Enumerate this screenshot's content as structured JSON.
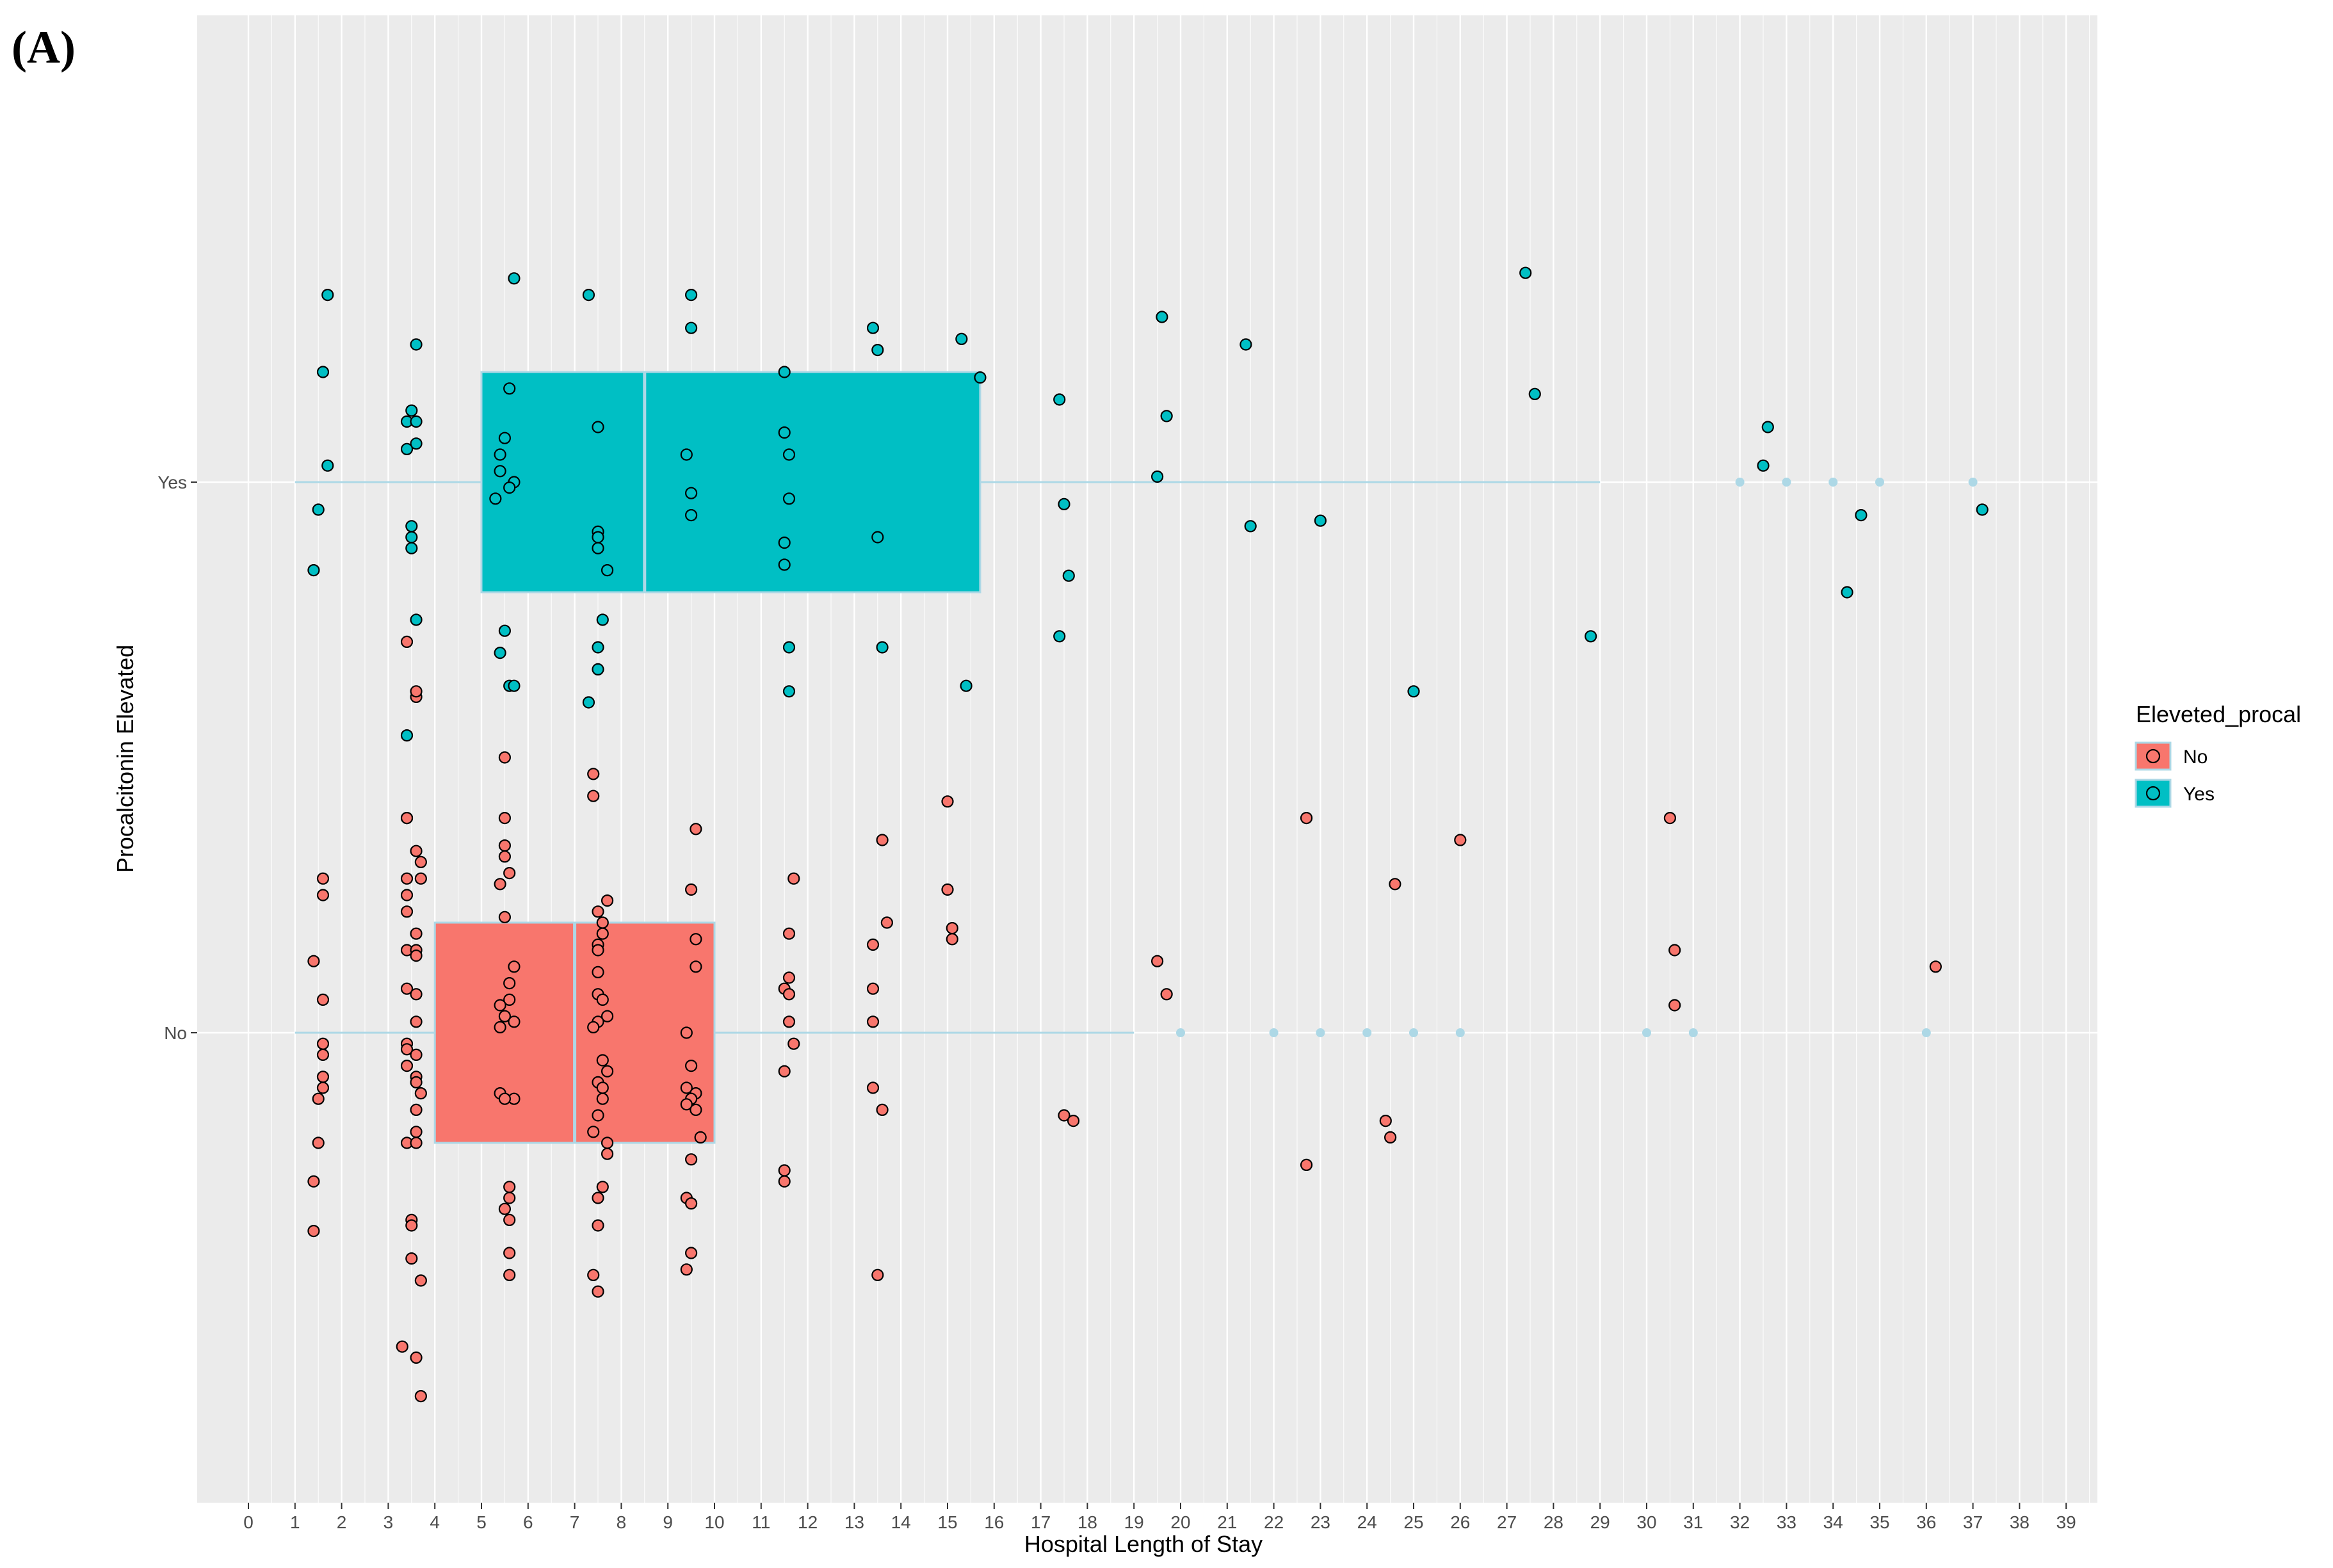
{
  "panel_label": "(A)",
  "chart_data": {
    "type": "boxplot",
    "xlabel": "Hospital Length of Stay",
    "ylabel": "Procalcitonin Elevated",
    "xlim": [
      -0.5,
      39.8
    ],
    "x_ticks": [
      0,
      1,
      2,
      3,
      4,
      5,
      6,
      7,
      8,
      9,
      10,
      11,
      12,
      13,
      14,
      15,
      16,
      17,
      18,
      19,
      20,
      21,
      22,
      23,
      24,
      25,
      26,
      27,
      28,
      29,
      30,
      31,
      32,
      33,
      34,
      35,
      36,
      37,
      38,
      39
    ],
    "categories": [
      "No",
      "Yes"
    ],
    "grid": true,
    "legend": {
      "title": "Eleveted_procal",
      "position": "right",
      "entries": [
        "No",
        "Yes"
      ]
    },
    "colors": {
      "No": "#f8766d",
      "Yes": "#00bfc4",
      "whisker": "#add8e6",
      "panel": "#ebebeb",
      "grid": "#ffffff",
      "point_edge": "#000000"
    },
    "boxes": [
      {
        "group": "No",
        "q1": 4,
        "median": 7,
        "q3": 10,
        "whisker_low": 1,
        "whisker_high": 19,
        "outliers": [
          20,
          22,
          23,
          24,
          25,
          26,
          30,
          31,
          36
        ]
      },
      {
        "group": "Yes",
        "q1": 5,
        "median": 8.5,
        "q3": 15.7,
        "whisker_low": 1,
        "whisker_high": 29,
        "outliers": [
          32,
          33,
          34,
          35,
          37
        ]
      }
    ],
    "series": [
      {
        "name": "No",
        "points": [
          [
            1.6,
            0.28
          ],
          [
            1.6,
            0.25
          ],
          [
            1.4,
            0.13
          ],
          [
            1.6,
            0.06
          ],
          [
            1.6,
            -0.02
          ],
          [
            1.6,
            -0.04
          ],
          [
            1.6,
            -0.08
          ],
          [
            1.6,
            -0.1
          ],
          [
            1.5,
            -0.12
          ],
          [
            1.5,
            -0.2
          ],
          [
            1.4,
            -0.27
          ],
          [
            1.4,
            -0.36
          ],
          [
            3.4,
            0.71
          ],
          [
            3.6,
            0.61
          ],
          [
            3.6,
            0.62
          ],
          [
            3.4,
            0.39
          ],
          [
            3.4,
            0.39
          ],
          [
            3.6,
            0.33
          ],
          [
            3.7,
            0.31
          ],
          [
            3.4,
            0.28
          ],
          [
            3.7,
            0.28
          ],
          [
            3.4,
            0.25
          ],
          [
            3.4,
            0.22
          ],
          [
            3.6,
            0.18
          ],
          [
            3.4,
            0.15
          ],
          [
            3.6,
            0.15
          ],
          [
            3.6,
            0.14
          ],
          [
            3.4,
            0.08
          ],
          [
            3.6,
            0.07
          ],
          [
            3.6,
            0.02
          ],
          [
            3.4,
            -0.02
          ],
          [
            3.4,
            -0.03
          ],
          [
            3.6,
            -0.04
          ],
          [
            3.4,
            -0.06
          ],
          [
            3.6,
            -0.08
          ],
          [
            3.6,
            -0.09
          ],
          [
            3.7,
            -0.11
          ],
          [
            3.6,
            -0.14
          ],
          [
            3.6,
            -0.18
          ],
          [
            3.4,
            -0.2
          ],
          [
            3.6,
            -0.2
          ],
          [
            3.5,
            -0.34
          ],
          [
            3.5,
            -0.35
          ],
          [
            3.5,
            -0.41
          ],
          [
            3.7,
            -0.45
          ],
          [
            3.3,
            -0.57
          ],
          [
            3.6,
            -0.59
          ],
          [
            3.7,
            -0.66
          ],
          [
            5.5,
            0.5
          ],
          [
            5.5,
            0.39
          ],
          [
            5.5,
            0.34
          ],
          [
            5.5,
            0.32
          ],
          [
            5.6,
            0.29
          ],
          [
            5.4,
            0.27
          ],
          [
            5.5,
            0.21
          ],
          [
            5.7,
            0.12
          ],
          [
            5.6,
            0.09
          ],
          [
            5.6,
            0.06
          ],
          [
            5.4,
            0.05
          ],
          [
            5.5,
            0.03
          ],
          [
            5.7,
            0.02
          ],
          [
            5.4,
            0.01
          ],
          [
            5.4,
            -0.11
          ],
          [
            5.7,
            -0.12
          ],
          [
            5.5,
            -0.12
          ],
          [
            5.6,
            -0.28
          ],
          [
            5.6,
            -0.3
          ],
          [
            5.5,
            -0.32
          ],
          [
            5.6,
            -0.34
          ],
          [
            5.6,
            -0.4
          ],
          [
            5.6,
            -0.44
          ],
          [
            7.4,
            0.47
          ],
          [
            7.4,
            0.43
          ],
          [
            7.7,
            0.24
          ],
          [
            7.5,
            0.22
          ],
          [
            7.6,
            0.2
          ],
          [
            7.6,
            0.18
          ],
          [
            7.5,
            0.16
          ],
          [
            7.5,
            0.15
          ],
          [
            7.5,
            0.11
          ],
          [
            7.5,
            0.07
          ],
          [
            7.6,
            0.06
          ],
          [
            7.7,
            0.03
          ],
          [
            7.5,
            0.02
          ],
          [
            7.4,
            0.01
          ],
          [
            7.6,
            -0.05
          ],
          [
            7.7,
            -0.07
          ],
          [
            7.5,
            -0.09
          ],
          [
            7.6,
            -0.1
          ],
          [
            7.6,
            -0.12
          ],
          [
            7.5,
            -0.15
          ],
          [
            7.4,
            -0.18
          ],
          [
            7.7,
            -0.2
          ],
          [
            7.7,
            -0.22
          ],
          [
            7.6,
            -0.28
          ],
          [
            7.5,
            -0.3
          ],
          [
            7.5,
            -0.35
          ],
          [
            7.4,
            -0.44
          ],
          [
            7.5,
            -0.47
          ],
          [
            9.6,
            0.37
          ],
          [
            9.5,
            0.26
          ],
          [
            9.6,
            0.17
          ],
          [
            9.6,
            0.12
          ],
          [
            9.4,
            0.0
          ],
          [
            9.5,
            -0.06
          ],
          [
            9.4,
            -0.1
          ],
          [
            9.6,
            -0.11
          ],
          [
            9.5,
            -0.12
          ],
          [
            9.4,
            -0.13
          ],
          [
            9.6,
            -0.14
          ],
          [
            9.7,
            -0.19
          ],
          [
            9.5,
            -0.23
          ],
          [
            9.4,
            -0.3
          ],
          [
            9.5,
            -0.31
          ],
          [
            9.5,
            -0.4
          ],
          [
            9.4,
            -0.43
          ],
          [
            11.7,
            0.28
          ],
          [
            11.6,
            0.18
          ],
          [
            11.6,
            0.1
          ],
          [
            11.5,
            0.08
          ],
          [
            11.6,
            0.07
          ],
          [
            11.6,
            0.02
          ],
          [
            11.7,
            -0.02
          ],
          [
            11.5,
            -0.07
          ],
          [
            11.5,
            -0.25
          ],
          [
            11.5,
            -0.27
          ],
          [
            13.6,
            0.35
          ],
          [
            13.7,
            0.2
          ],
          [
            13.4,
            0.16
          ],
          [
            13.4,
            0.08
          ],
          [
            13.4,
            0.02
          ],
          [
            13.4,
            -0.1
          ],
          [
            13.6,
            -0.14
          ],
          [
            13.5,
            -0.44
          ],
          [
            15.0,
            0.42
          ],
          [
            15.0,
            0.26
          ],
          [
            15.1,
            0.19
          ],
          [
            15.1,
            0.17
          ],
          [
            17.5,
            -0.15
          ],
          [
            17.7,
            -0.16
          ],
          [
            19.5,
            0.13
          ],
          [
            19.7,
            0.07
          ],
          [
            22.7,
            0.39
          ],
          [
            22.7,
            -0.24
          ],
          [
            24.6,
            0.27
          ],
          [
            24.4,
            -0.16
          ],
          [
            24.5,
            -0.19
          ],
          [
            26.0,
            0.35
          ],
          [
            30.5,
            0.39
          ],
          [
            30.6,
            0.15
          ],
          [
            30.6,
            0.05
          ],
          [
            36.2,
            0.12
          ]
        ]
      },
      {
        "name": "Yes",
        "points": [
          [
            1.7,
            0.34
          ],
          [
            1.6,
            0.2
          ],
          [
            1.7,
            0.03
          ],
          [
            1.5,
            -0.05
          ],
          [
            1.4,
            -0.16
          ],
          [
            3.6,
            0.25
          ],
          [
            3.5,
            0.13
          ],
          [
            3.4,
            0.11
          ],
          [
            3.6,
            0.11
          ],
          [
            3.6,
            0.07
          ],
          [
            3.4,
            0.06
          ],
          [
            3.5,
            -0.08
          ],
          [
            3.5,
            -0.1
          ],
          [
            3.5,
            -0.12
          ],
          [
            3.6,
            -0.25
          ],
          [
            3.4,
            -0.46
          ],
          [
            5.7,
            0.37
          ],
          [
            5.6,
            0.17
          ],
          [
            5.5,
            0.08
          ],
          [
            5.4,
            0.05
          ],
          [
            5.4,
            0.02
          ],
          [
            5.7,
            0.0
          ],
          [
            5.6,
            -0.01
          ],
          [
            5.3,
            -0.03
          ],
          [
            5.5,
            -0.27
          ],
          [
            5.4,
            -0.31
          ],
          [
            5.6,
            -0.37
          ],
          [
            5.7,
            -0.37
          ],
          [
            7.3,
            0.34
          ],
          [
            7.5,
            0.1
          ],
          [
            7.5,
            -0.09
          ],
          [
            7.5,
            -0.1
          ],
          [
            7.5,
            -0.12
          ],
          [
            7.7,
            -0.16
          ],
          [
            7.6,
            -0.25
          ],
          [
            7.5,
            -0.3
          ],
          [
            7.5,
            -0.34
          ],
          [
            7.3,
            -0.4
          ],
          [
            9.5,
            0.34
          ],
          [
            9.5,
            0.28
          ],
          [
            9.4,
            0.05
          ],
          [
            9.5,
            -0.02
          ],
          [
            9.5,
            -0.06
          ],
          [
            11.5,
            0.2
          ],
          [
            11.5,
            0.09
          ],
          [
            11.6,
            0.05
          ],
          [
            11.6,
            -0.03
          ],
          [
            11.5,
            -0.11
          ],
          [
            11.5,
            -0.15
          ],
          [
            11.6,
            -0.3
          ],
          [
            11.6,
            -0.38
          ],
          [
            13.4,
            0.28
          ],
          [
            13.5,
            0.24
          ],
          [
            13.5,
            -0.1
          ],
          [
            13.6,
            -0.3
          ],
          [
            15.3,
            0.26
          ],
          [
            15.7,
            0.19
          ],
          [
            15.4,
            -0.37
          ],
          [
            17.4,
            0.15
          ],
          [
            17.5,
            -0.04
          ],
          [
            17.6,
            -0.17
          ],
          [
            17.4,
            -0.28
          ],
          [
            19.6,
            0.3
          ],
          [
            19.7,
            0.12
          ],
          [
            19.5,
            0.01
          ],
          [
            21.4,
            0.25
          ],
          [
            21.5,
            -0.08
          ],
          [
            23.0,
            -0.07
          ],
          [
            25.0,
            -0.38
          ],
          [
            27.4,
            0.38
          ],
          [
            27.6,
            0.16
          ],
          [
            28.8,
            -0.28
          ],
          [
            32.5,
            0.03
          ],
          [
            32.6,
            0.1
          ],
          [
            34.3,
            -0.2
          ],
          [
            34.6,
            -0.06
          ],
          [
            37.2,
            -0.05
          ]
        ]
      }
    ]
  }
}
